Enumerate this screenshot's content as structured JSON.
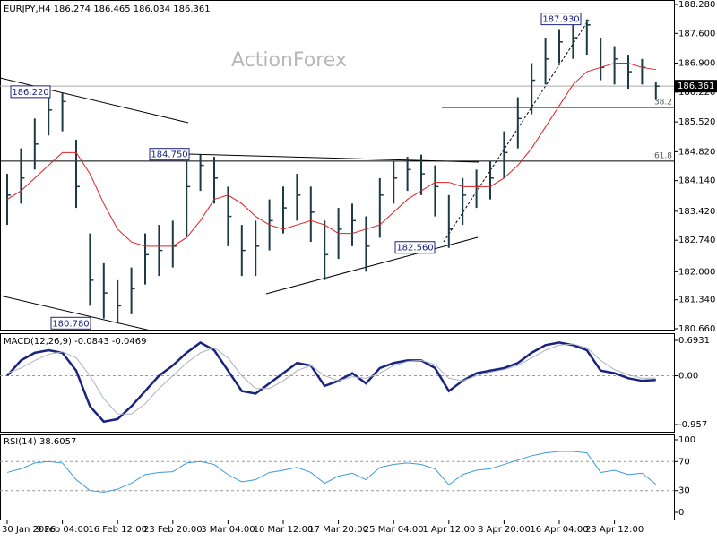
{
  "chart_data": {
    "type": "ohlc",
    "header": "EURJPY,H4  186.274 186.465 186.034 186.361",
    "watermark": "ActionForex",
    "color": "#1c3a44",
    "categories": [
      "30 Jan 2026",
      null,
      null,
      null,
      "9 Feb 04:00",
      null,
      null,
      null,
      "16 Feb 12:00",
      null,
      null,
      null,
      "23 Feb 20:00",
      null,
      null,
      null,
      "3 Mar 04:00",
      null,
      null,
      null,
      "10 Mar 12:00",
      null,
      null,
      null,
      "17 Mar 20:00",
      null,
      null,
      null,
      "25 Mar 04:00",
      null,
      null,
      null,
      "1 Apr 12:00",
      null,
      null,
      null,
      "8 Apr 20:00",
      null,
      null,
      null,
      "16 Apr 04:00",
      null,
      null,
      null,
      "23 Apr 12:00",
      null,
      null,
      null
    ],
    "high": [
      184.3,
      184.9,
      185.6,
      186.22,
      186.2,
      185.1,
      182.9,
      182.2,
      181.8,
      182.1,
      182.9,
      183.1,
      183.2,
      184.6,
      184.75,
      184.7,
      184.0,
      183.1,
      183.2,
      183.7,
      184.0,
      184.3,
      184.0,
      183.2,
      183.5,
      183.6,
      183.3,
      184.2,
      184.6,
      184.7,
      184.75,
      184.5,
      183.8,
      184.2,
      184.4,
      184.6,
      185.3,
      186.1,
      186.9,
      187.5,
      187.7,
      187.8,
      187.93,
      187.5,
      187.3,
      187.1,
      187.0,
      186.465
    ],
    "low": [
      183.1,
      183.6,
      184.4,
      185.2,
      185.3,
      183.5,
      181.2,
      180.9,
      180.78,
      181.0,
      181.7,
      181.9,
      182.1,
      182.8,
      183.9,
      183.6,
      182.6,
      181.9,
      181.9,
      182.5,
      182.9,
      183.2,
      182.7,
      181.8,
      182.3,
      182.6,
      182.0,
      182.8,
      183.6,
      183.9,
      183.8,
      183.3,
      182.56,
      183.1,
      183.5,
      183.7,
      184.2,
      184.9,
      185.7,
      186.4,
      186.9,
      187.0,
      187.1,
      186.5,
      186.4,
      186.3,
      186.4,
      186.034
    ],
    "close": [
      183.8,
      184.2,
      185.0,
      185.8,
      186.0,
      184.0,
      181.8,
      181.5,
      181.2,
      181.6,
      182.4,
      182.5,
      182.6,
      184.0,
      184.5,
      184.2,
      183.3,
      182.5,
      182.6,
      183.2,
      183.5,
      183.8,
      183.4,
      182.4,
      183.0,
      183.2,
      182.6,
      183.8,
      184.2,
      184.4,
      184.3,
      184.0,
      183.0,
      183.8,
      184.0,
      184.2,
      184.8,
      185.6,
      186.5,
      187.0,
      187.4,
      187.5,
      187.8,
      186.8,
      187.0,
      186.7,
      186.8,
      186.361
    ],
    "ma": {
      "color": "#e02020",
      "values": [
        183.7,
        183.9,
        184.2,
        184.5,
        184.8,
        184.8,
        184.3,
        183.6,
        183.0,
        182.7,
        182.6,
        182.6,
        182.6,
        182.8,
        183.2,
        183.7,
        183.8,
        183.6,
        183.3,
        183.1,
        183.0,
        183.1,
        183.2,
        183.1,
        182.9,
        182.9,
        183.0,
        183.1,
        183.4,
        183.7,
        183.9,
        184.1,
        184.1,
        184.0,
        184.0,
        184.0,
        184.2,
        184.5,
        184.9,
        185.4,
        185.9,
        186.4,
        186.7,
        186.8,
        186.9,
        186.9,
        186.8,
        186.75
      ]
    },
    "ylim": [
      180.66,
      188.28
    ],
    "yticks": [
      {
        "value": 188.28,
        "label": "188.280"
      },
      {
        "value": 187.6,
        "label": "187.600"
      },
      {
        "value": 186.9,
        "label": "186.900"
      },
      {
        "value": 186.22,
        "label": "186.220"
      },
      {
        "value": 185.52,
        "label": "185.520"
      },
      {
        "value": 184.82,
        "label": "184.820"
      },
      {
        "value": 184.14,
        "label": "184.140"
      },
      {
        "value": 183.42,
        "label": "183.420"
      },
      {
        "value": 182.74,
        "label": "182.740"
      },
      {
        "value": 182.0,
        "label": "182.000"
      },
      {
        "value": 181.34,
        "label": "181.340"
      },
      {
        "value": 180.66,
        "label": "180.660"
      }
    ],
    "last_price": {
      "value": 186.361,
      "label": "186.361"
    },
    "annotations": [
      {
        "value": 186.22,
        "label": "186.220"
      },
      {
        "value": 184.75,
        "label": "184.750"
      },
      {
        "value": 180.78,
        "label": "180.780"
      },
      {
        "value": 182.56,
        "label": "182.560"
      },
      {
        "value": 187.93,
        "label": "187.930"
      }
    ],
    "fib": [
      {
        "value": 185.86,
        "label": "38.2"
      },
      {
        "value": 184.6,
        "label": "61.8"
      }
    ],
    "macd": {
      "title": "MACD(12,26,9) -0.0843 -0.0469",
      "ylim": [
        -0.957,
        0.6931
      ],
      "yticks": [
        {
          "value": 0.6931,
          "label": "0.6931"
        },
        {
          "value": 0,
          "label": "0.00"
        },
        {
          "value": -0.957,
          "label": "-0.957"
        }
      ],
      "series": [
        {
          "color": "#1a237e",
          "values": [
            0.0,
            0.3,
            0.45,
            0.5,
            0.45,
            0.1,
            -0.6,
            -0.9,
            -0.85,
            -0.6,
            -0.3,
            0.0,
            0.2,
            0.45,
            0.65,
            0.5,
            0.1,
            -0.3,
            -0.35,
            -0.15,
            0.05,
            0.25,
            0.2,
            -0.2,
            -0.1,
            0.05,
            -0.15,
            0.15,
            0.25,
            0.3,
            0.3,
            0.15,
            -0.3,
            -0.1,
            0.05,
            0.1,
            0.15,
            0.25,
            0.45,
            0.6,
            0.65,
            0.6,
            0.5,
            0.1,
            0.05,
            -0.05,
            -0.1,
            -0.0843
          ]
        },
        {
          "color": "#aab2c4",
          "values": [
            0.05,
            0.15,
            0.3,
            0.42,
            0.47,
            0.35,
            0.0,
            -0.45,
            -0.75,
            -0.75,
            -0.55,
            -0.25,
            0.0,
            0.25,
            0.45,
            0.55,
            0.35,
            0.0,
            -0.25,
            -0.25,
            -0.1,
            0.1,
            0.2,
            0.0,
            -0.1,
            -0.02,
            -0.05,
            0.05,
            0.2,
            0.28,
            0.3,
            0.22,
            -0.05,
            -0.1,
            0.0,
            0.07,
            0.12,
            0.2,
            0.35,
            0.5,
            0.6,
            0.62,
            0.55,
            0.3,
            0.12,
            0.02,
            -0.05,
            -0.0469
          ]
        }
      ]
    },
    "rsi": {
      "title": "RSI(14) 38.6057",
      "ylim": [
        0,
        100
      ],
      "yticks": [
        100,
        70,
        30,
        0
      ],
      "color": "#3d9ad8",
      "values": [
        55,
        60,
        68,
        70,
        68,
        45,
        30,
        28,
        32,
        40,
        52,
        55,
        56,
        68,
        70,
        66,
        52,
        42,
        45,
        55,
        58,
        62,
        55,
        40,
        50,
        54,
        45,
        62,
        66,
        68,
        66,
        60,
        38,
        52,
        58,
        60,
        66,
        72,
        78,
        82,
        84,
        84,
        82,
        55,
        58,
        52,
        54,
        38.6057
      ]
    }
  }
}
